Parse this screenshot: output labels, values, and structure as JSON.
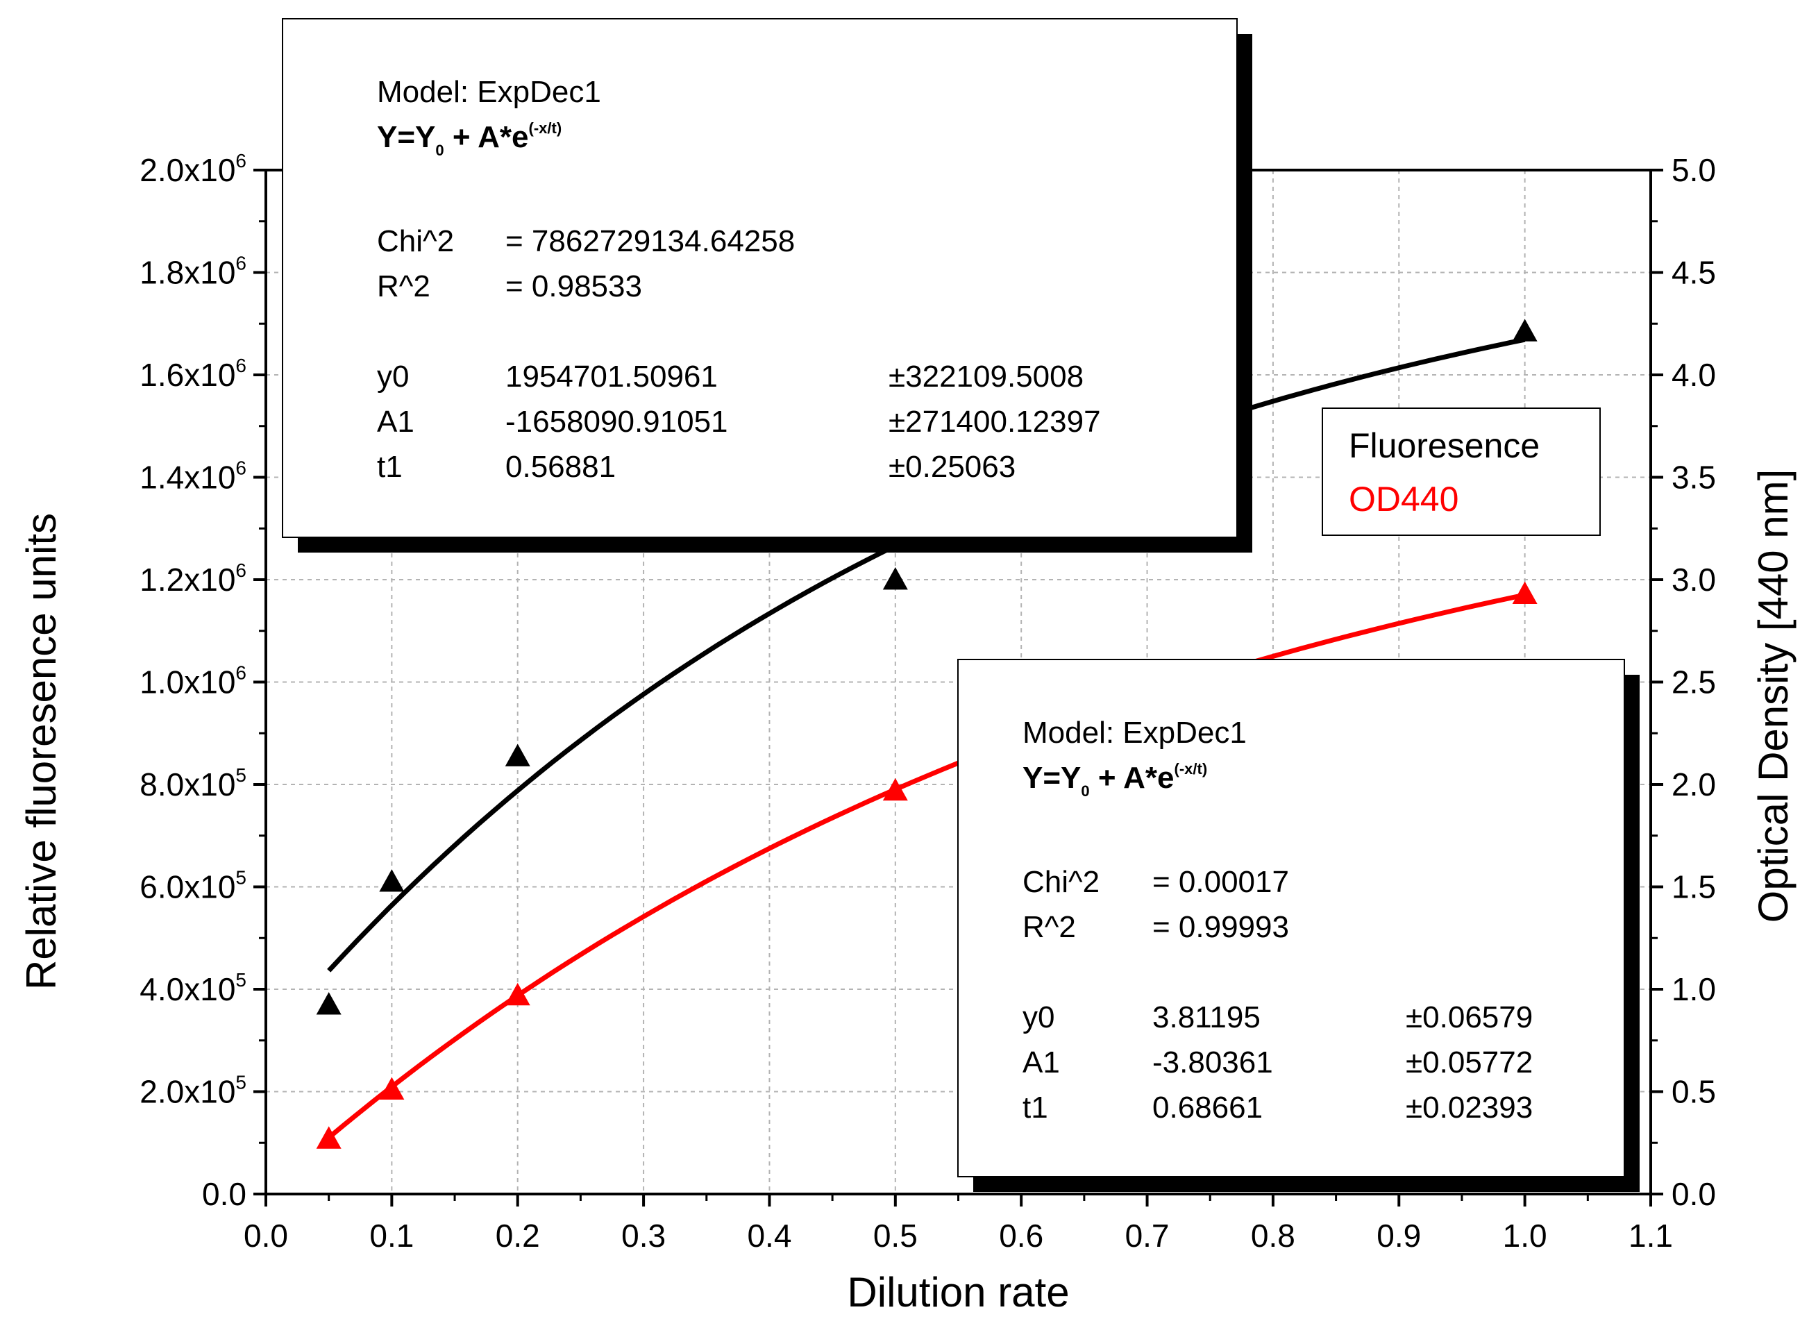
{
  "chart_data": {
    "type": "scatter",
    "xlabel": "Dilution rate",
    "ylabel_left": "Relative fluoresence units",
    "ylabel_right": "Optical Density [440 nm]",
    "xlim": [
      0.0,
      1.1
    ],
    "ylim_left": [
      0,
      2000000
    ],
    "ylim_right": [
      0.0,
      5.0
    ],
    "grid": true,
    "x_ticks": [
      "0.0",
      "0.1",
      "0.2",
      "0.3",
      "0.4",
      "0.5",
      "0.6",
      "0.7",
      "0.8",
      "0.9",
      "1.0",
      "1.1"
    ],
    "y_left_ticks": [
      {
        "value": 0,
        "mantissa": "0.0",
        "exp": ""
      },
      {
        "value": 200000,
        "mantissa": "2.0x10",
        "exp": "5"
      },
      {
        "value": 400000,
        "mantissa": "4.0x10",
        "exp": "5"
      },
      {
        "value": 600000,
        "mantissa": "6.0x10",
        "exp": "5"
      },
      {
        "value": 800000,
        "mantissa": "8.0x10",
        "exp": "5"
      },
      {
        "value": 1000000,
        "mantissa": "1.0x10",
        "exp": "6"
      },
      {
        "value": 1200000,
        "mantissa": "1.2x10",
        "exp": "6"
      },
      {
        "value": 1400000,
        "mantissa": "1.4x10",
        "exp": "6"
      },
      {
        "value": 1600000,
        "mantissa": "1.6x10",
        "exp": "6"
      },
      {
        "value": 1800000,
        "mantissa": "1.8x10",
        "exp": "6"
      },
      {
        "value": 2000000,
        "mantissa": "2.0x10",
        "exp": "6"
      }
    ],
    "y_right_ticks": [
      "0.0",
      "0.5",
      "1.0",
      "1.5",
      "2.0",
      "2.5",
      "3.0",
      "3.5",
      "4.0",
      "4.5",
      "5.0"
    ],
    "legend_position": "right-middle",
    "series": [
      {
        "name": "Fluoresence",
        "axis": "left",
        "color": "#000000",
        "marker": "triangle",
        "x": [
          0.05,
          0.1,
          0.2,
          0.5,
          1.0
        ],
        "y": [
          370000,
          610000,
          855000,
          1200000,
          1685000
        ],
        "fit": {
          "model": "ExpDec1",
          "y0": 1954701.50961,
          "A1": -1658090.91051,
          "t1": 0.56881,
          "x_range": [
            0.05,
            1.0
          ]
        }
      },
      {
        "name": "OD440",
        "axis": "right",
        "color": "#ff0000",
        "marker": "triangle",
        "x": [
          0.05,
          0.1,
          0.2,
          0.5,
          1.0
        ],
        "y": [
          0.27,
          0.51,
          0.97,
          1.97,
          2.93
        ],
        "fit": {
          "model": "ExpDec1",
          "y0": 3.81195,
          "A1": -3.80361,
          "t1": 0.68661,
          "x_range": [
            0.05,
            1.0
          ]
        }
      }
    ],
    "annotations": [
      {
        "model": "Model: ExpDec1",
        "equation": {
          "y": "Y=Y",
          "sub": "0",
          "rest": " + A*e",
          "sup": "(-x/t)"
        },
        "chi_label": "Chi^2",
        "chi_value": "=  7862729134.64258",
        "r_label": "R^2",
        "r_value": "=  0.98533",
        "params": [
          {
            "name": "y0",
            "value": "1954701.50961",
            "err": "±322109.5008"
          },
          {
            "name": "A1",
            "value": "-1658090.91051",
            "err": "±271400.12397"
          },
          {
            "name": "t1",
            "value": "0.56881",
            "err": "±0.25063"
          }
        ]
      },
      {
        "model": "Model: ExpDec1",
        "equation": {
          "y": "Y=Y",
          "sub": "0",
          "rest": " + A*e",
          "sup": "(-x/t)"
        },
        "chi_label": "Chi^2",
        "chi_value": "=  0.00017",
        "r_label": "R^2",
        "r_value": "=  0.99993",
        "params": [
          {
            "name": "y0",
            "value": "3.81195",
            "err": "±0.06579"
          },
          {
            "name": "A1",
            "value": "-3.80361",
            "err": "±0.05772"
          },
          {
            "name": "t1",
            "value": "0.68661",
            "err": "±0.02393"
          }
        ]
      }
    ],
    "legend": [
      {
        "label": "Fluoresence",
        "color": "#000000"
      },
      {
        "label": "OD440",
        "color": "#ff0000"
      }
    ]
  }
}
